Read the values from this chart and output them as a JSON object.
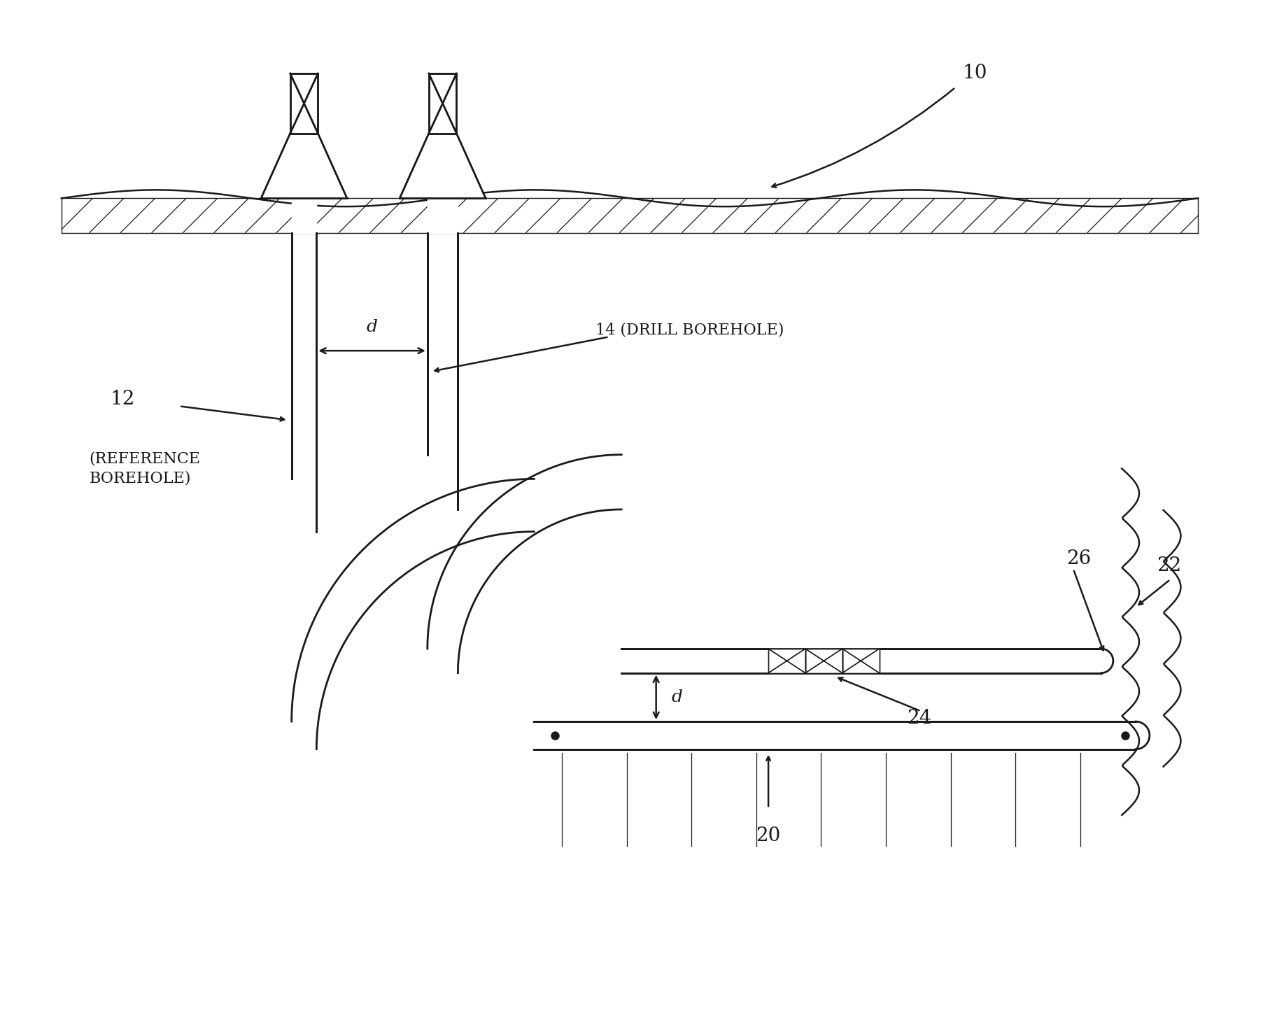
{
  "bg_color": "#ffffff",
  "line_color": "#1a1a1a",
  "fig_width": 18.05,
  "fig_height": 14.49,
  "dpi": 100,
  "labels": {
    "label_10": "10",
    "label_12": "12",
    "label_12_sub": "(REFERENCE\nBOREHOLE)",
    "label_14": "14 (DRILL BOREHOLE)",
    "label_20": "20",
    "label_22": "22",
    "label_24": "24",
    "label_26": "26",
    "label_d1": "d",
    "label_d2": "d"
  }
}
